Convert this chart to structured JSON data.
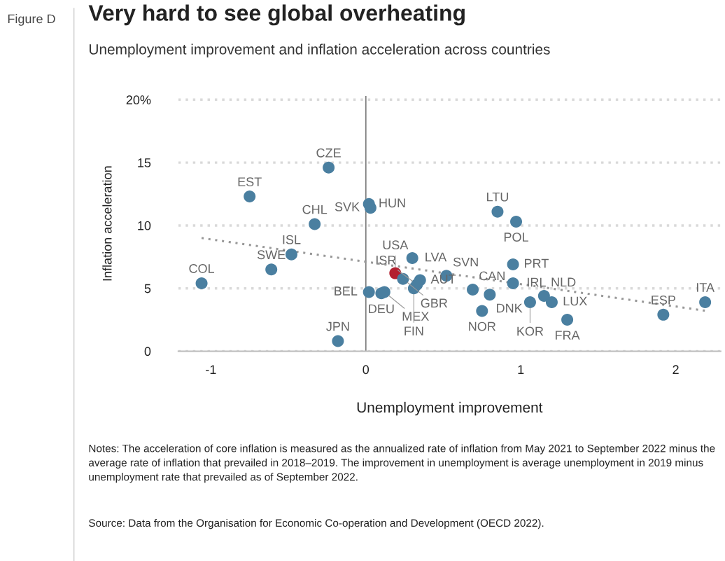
{
  "chart_data": {
    "type": "scatter",
    "title": "Very hard to see global overheating",
    "subtitle": "Unemployment improvement and inflation acceleration across countries",
    "xlabel": "Unemployment improvement",
    "ylabel": "Inflation acceleration",
    "xlim": [
      -1.21,
      2.29
    ],
    "xticks": [
      -1,
      0,
      1,
      2
    ],
    "ylim": [
      0,
      20.3
    ],
    "yticks": [
      0,
      5,
      10,
      15,
      {
        "value": 20,
        "label": "20%"
      }
    ],
    "grid": "y",
    "ref_lines": [
      {
        "axis": "x",
        "value": 0,
        "label": null,
        "color": "#808080",
        "line_style": "solid"
      }
    ],
    "series": [
      {
        "marker": "circle",
        "x": [
          -1.06,
          -0.75,
          -0.24,
          -0.33,
          -0.48,
          -0.61,
          -0.18,
          0.02,
          0.03,
          0.02,
          0.1,
          0.12,
          0.19,
          0.3,
          0.24,
          0.35,
          0.31,
          0.33,
          0.52,
          0.69,
          0.8,
          0.75,
          0.85,
          0.97,
          0.95,
          0.95,
          1.06,
          1.15,
          1.2,
          1.3,
          1.92,
          2.19
        ],
        "values": [
          5.4,
          12.3,
          14.6,
          10.1,
          7.7,
          6.5,
          0.8,
          11.7,
          11.4,
          4.7,
          4.6,
          4.7,
          6.2,
          7.4,
          5.75,
          5.65,
          5.0,
          5.3,
          6.0,
          4.9,
          4.5,
          3.2,
          11.1,
          10.3,
          6.9,
          5.4,
          3.9,
          4.4,
          3.9,
          2.5,
          2.9,
          3.9
        ],
        "colors": [
          "#4a7fa0",
          "#4a7fa0",
          "#4a7fa0",
          "#4a7fa0",
          "#4a7fa0",
          "#4a7fa0",
          "#4a7fa0",
          "#4a7fa0",
          "#4a7fa0",
          "#4a7fa0",
          "#4a7fa0",
          "#4a7fa0",
          "#b3202f",
          "#4a7fa0",
          "#4a7fa0",
          "#4a7fa0",
          "#4a7fa0",
          "#4a7fa0",
          "#4a7fa0",
          "#4a7fa0",
          "#4a7fa0",
          "#4a7fa0",
          "#4a7fa0",
          "#4a7fa0",
          "#4a7fa0",
          "#4a7fa0",
          "#4a7fa0",
          "#4a7fa0",
          "#4a7fa0",
          "#4a7fa0",
          "#4a7fa0",
          "#4a7fa0"
        ]
      },
      {
        "type": "line",
        "x": [
          -1.06,
          2.2
        ],
        "values": [
          9.0,
          3.2
        ],
        "color": "#999999",
        "line_style": "dotted"
      }
    ],
    "annotations": [
      {
        "text": "COL",
        "x": -1.06,
        "y": 5.4
      },
      {
        "text": "EST",
        "x": -0.75,
        "y": 12.3
      },
      {
        "text": "CZE",
        "x": -0.24,
        "y": 14.6
      },
      {
        "text": "CHL",
        "x": -0.33,
        "y": 10.1
      },
      {
        "text": "ISL",
        "x": -0.48,
        "y": 7.7
      },
      {
        "text": "SWE",
        "x": -0.61,
        "y": 6.5
      },
      {
        "text": "JPN",
        "x": -0.18,
        "y": 0.8
      },
      {
        "text": "HUN",
        "x": 0.02,
        "y": 11.7
      },
      {
        "text": "SVK",
        "x": 0.03,
        "y": 11.4
      },
      {
        "text": "BEL",
        "x": 0.02,
        "y": 4.7
      },
      {
        "text": "DEU",
        "x": 0.1,
        "y": 4.6
      },
      {
        "text": "MEX",
        "x": 0.12,
        "y": 4.7
      },
      {
        "text": "USA",
        "x": 0.19,
        "y": 6.2
      },
      {
        "text": "LVA",
        "x": 0.3,
        "y": 7.4
      },
      {
        "text": "GBR",
        "x": 0.24,
        "y": 5.75
      },
      {
        "text": "AUT",
        "x": 0.35,
        "y": 5.65
      },
      {
        "text": "FIN",
        "x": 0.31,
        "y": 5.0
      },
      {
        "text": "ISR",
        "x": 0.33,
        "y": 5.3
      },
      {
        "text": "SVN",
        "x": 0.52,
        "y": 6.0
      },
      {
        "text": "CAN",
        "x": 0.69,
        "y": 4.9
      },
      {
        "text": "DNK",
        "x": 0.8,
        "y": 4.5
      },
      {
        "text": "NOR",
        "x": 0.75,
        "y": 3.2
      },
      {
        "text": "LTU",
        "x": 0.85,
        "y": 11.1
      },
      {
        "text": "POL",
        "x": 0.97,
        "y": 10.3
      },
      {
        "text": "PRT",
        "x": 0.95,
        "y": 6.9
      },
      {
        "text": "IRL",
        "x": 0.95,
        "y": 5.4
      },
      {
        "text": "KOR",
        "x": 1.06,
        "y": 3.9
      },
      {
        "text": "NLD",
        "x": 1.15,
        "y": 4.4
      },
      {
        "text": "LUX",
        "x": 1.2,
        "y": 3.9
      },
      {
        "text": "FRA",
        "x": 1.3,
        "y": 2.5
      },
      {
        "text": "ESP",
        "x": 1.92,
        "y": 2.9
      },
      {
        "text": "ITA",
        "x": 2.19,
        "y": 3.9
      },
      "Figure D",
      "Notes: The acceleration of core inflation is measured as the annualized rate of inflation from May 2021 to September 2022 minus the average rate of inflation that prevailed in 2018–2019. The improvement in unemployment is average unemployment in 2019 minus unemployment rate that prevailed as of September 2022.",
      "Source: Data from the Organisation for Economic Co-operation and Development (OECD 2022)."
    ]
  }
}
